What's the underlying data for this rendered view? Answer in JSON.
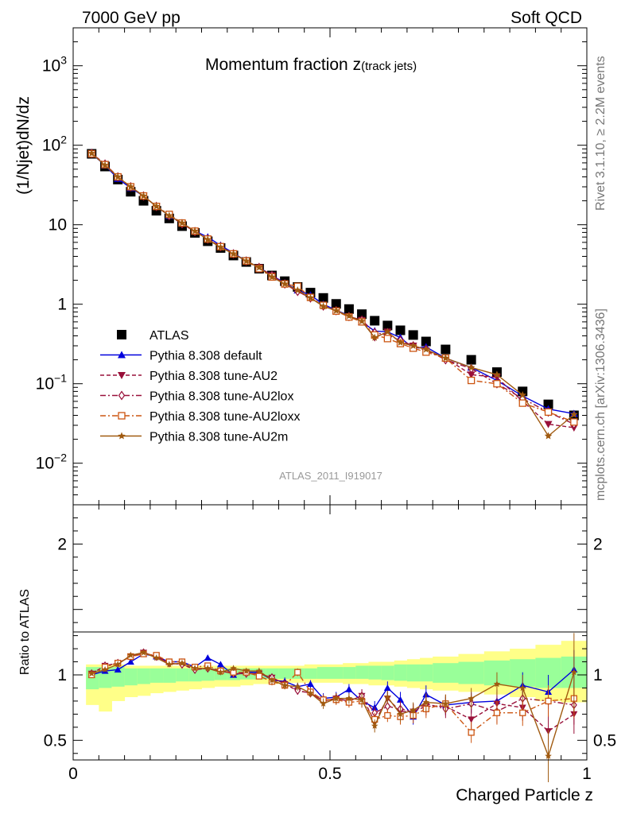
{
  "header": {
    "left": "7000 GeV pp",
    "right": "Soft QCD"
  },
  "side_labels": {
    "rivet": "Rivet 3.1.10, ≥ 2.2M events",
    "mcplots": "mcplots.cern.ch [arXiv:1306.3436]"
  },
  "watermark": "ATLAS_2011_I919017",
  "chart_data": [
    {
      "type": "scatter",
      "title_main": "Momentum fraction ",
      "title_var": "z",
      "title_sub": "(track jets)",
      "ylabel": "(1/Njet)dN/dz",
      "yscale": "log",
      "ylim": [
        0.003,
        3000
      ],
      "xlim": [
        0,
        1
      ],
      "y_tick_labels": [
        {
          "value": 0.01,
          "base": "10",
          "exp": "−2"
        },
        {
          "value": 0.1,
          "base": "10",
          "exp": "−1"
        },
        {
          "value": 1,
          "base": "1",
          "exp": ""
        },
        {
          "value": 10,
          "base": "10",
          "exp": ""
        },
        {
          "value": 100,
          "base": "10",
          "exp": "2"
        },
        {
          "value": 1000,
          "base": "10",
          "exp": "3"
        }
      ],
      "x": [
        0.036,
        0.062,
        0.087,
        0.112,
        0.137,
        0.162,
        0.187,
        0.212,
        0.237,
        0.262,
        0.287,
        0.312,
        0.337,
        0.362,
        0.387,
        0.412,
        0.437,
        0.462,
        0.487,
        0.512,
        0.537,
        0.562,
        0.587,
        0.612,
        0.637,
        0.662,
        0.687,
        0.725,
        0.775,
        0.825,
        0.875,
        0.925,
        0.975
      ],
      "series": [
        {
          "name": "ATLAS",
          "color": "#000000",
          "marker": "square-filled",
          "line": "none",
          "values": [
            78,
            54,
            37,
            26,
            20,
            15,
            12,
            9.6,
            7.9,
            6.2,
            5.1,
            4.1,
            3.4,
            2.8,
            2.3,
            1.95,
            1.65,
            1.4,
            1.2,
            1.01,
            0.87,
            0.75,
            0.62,
            0.54,
            0.47,
            0.41,
            0.34,
            0.27,
            0.2,
            0.14,
            0.08,
            0.055,
            0.04
          ]
        },
        {
          "name": "Pythia 8.308 default",
          "color": "#0000dd",
          "marker": "triangle-up",
          "line": "solid",
          "values": [
            78,
            56,
            38,
            29,
            23,
            17,
            13,
            10.5,
            8.3,
            7.0,
            5.5,
            4.4,
            3.5,
            2.9,
            2.3,
            1.85,
            1.5,
            1.3,
            1.0,
            0.84,
            0.72,
            0.6,
            0.46,
            0.45,
            0.38,
            0.28,
            0.29,
            0.21,
            0.16,
            0.11,
            0.07,
            0.048,
            0.042
          ]
        },
        {
          "name": "Pythia 8.308 tune-AU2",
          "color": "#99103a",
          "marker": "triangle-down",
          "line": "dashed",
          "values": [
            79,
            58,
            40,
            30,
            23,
            17,
            13,
            10.3,
            8.2,
            6.6,
            5.3,
            4.3,
            3.5,
            2.9,
            2.3,
            1.8,
            1.45,
            1.2,
            0.95,
            0.83,
            0.7,
            0.63,
            0.38,
            0.45,
            0.33,
            0.3,
            0.26,
            0.21,
            0.13,
            0.12,
            0.06,
            0.031,
            0.028
          ]
        },
        {
          "name": "Pythia 8.308 tune-AU2lox",
          "color": "#99103a",
          "marker": "diamond-open",
          "line": "dashdot",
          "values": [
            79,
            58,
            40,
            30,
            23,
            17,
            13,
            10.3,
            8.2,
            6.6,
            5.3,
            4.3,
            3.5,
            2.9,
            2.3,
            1.8,
            1.45,
            1.2,
            0.95,
            0.83,
            0.7,
            0.63,
            0.44,
            0.41,
            0.35,
            0.3,
            0.27,
            0.2,
            0.155,
            0.1,
            0.065,
            0.044,
            0.031
          ]
        },
        {
          "name": "Pythia 8.308 tune-AU2loxx",
          "color": "#cc5511",
          "marker": "square-open",
          "line": "dashdot",
          "values": [
            78,
            57,
            40,
            30,
            23,
            17,
            13.5,
            10.5,
            8.3,
            6.6,
            5.3,
            4.3,
            3.5,
            2.8,
            2.2,
            1.8,
            1.68,
            1.22,
            0.97,
            0.82,
            0.69,
            0.6,
            0.41,
            0.37,
            0.32,
            0.28,
            0.25,
            0.21,
            0.11,
            0.1,
            0.057,
            0.044,
            0.033
          ]
        },
        {
          "name": "Pythia 8.308 tune-AU2m",
          "color": "#a05a10",
          "marker": "star",
          "line": "solid",
          "values": [
            79,
            56,
            40,
            30,
            23,
            17,
            13,
            10.5,
            8.3,
            6.5,
            5.2,
            4.3,
            3.5,
            2.9,
            2.2,
            1.8,
            1.5,
            1.2,
            0.94,
            0.83,
            0.71,
            0.61,
            0.38,
            0.45,
            0.33,
            0.3,
            0.27,
            0.21,
            0.16,
            0.13,
            0.072,
            0.022,
            0.041
          ]
        }
      ]
    },
    {
      "type": "scatter",
      "ylabel": "Ratio to ATLAS",
      "xlabel": "Charged Particle z",
      "ylim": [
        0.35,
        2.3
      ],
      "xlim": [
        0,
        1
      ],
      "x_tick_labels": [
        {
          "value": 0,
          "label": "0"
        },
        {
          "value": 0.5,
          "label": "0.5"
        },
        {
          "value": 1,
          "label": "1"
        }
      ],
      "y_tick_labels": [
        {
          "value": 0.5,
          "label": "0.5"
        },
        {
          "value": 1,
          "label": "1"
        },
        {
          "value": 2,
          "label": "2"
        }
      ],
      "bands": {
        "x_edges": [
          0.025,
          0.05,
          0.075,
          0.1,
          0.125,
          0.15,
          0.175,
          0.2,
          0.225,
          0.25,
          0.275,
          0.3,
          0.325,
          0.35,
          0.375,
          0.4,
          0.425,
          0.45,
          0.475,
          0.5,
          0.525,
          0.55,
          0.575,
          0.6,
          0.625,
          0.65,
          0.675,
          0.7,
          0.75,
          0.8,
          0.85,
          0.9,
          0.95,
          1.0
        ],
        "green_color": "#99ff99",
        "yellow_color": "#ffff88",
        "green_lo": [
          0.89,
          0.9,
          0.91,
          0.92,
          0.93,
          0.94,
          0.94,
          0.95,
          0.95,
          0.955,
          0.96,
          0.96,
          0.965,
          0.965,
          0.97,
          0.97,
          0.97,
          0.97,
          0.97,
          0.97,
          0.97,
          0.97,
          0.965,
          0.96,
          0.955,
          0.95,
          0.95,
          0.94,
          0.93,
          0.92,
          0.91,
          0.9,
          0.9
        ],
        "green_hi": [
          1.06,
          1.06,
          1.06,
          1.05,
          1.05,
          1.05,
          1.05,
          1.05,
          1.05,
          1.05,
          1.05,
          1.05,
          1.05,
          1.05,
          1.05,
          1.05,
          1.05,
          1.05,
          1.06,
          1.06,
          1.06,
          1.07,
          1.07,
          1.07,
          1.08,
          1.08,
          1.08,
          1.09,
          1.1,
          1.11,
          1.12,
          1.13,
          1.14
        ],
        "yellow_lo": [
          0.77,
          0.72,
          0.8,
          0.83,
          0.84,
          0.86,
          0.87,
          0.88,
          0.89,
          0.9,
          0.91,
          0.91,
          0.92,
          0.93,
          0.93,
          0.94,
          0.94,
          0.94,
          0.94,
          0.94,
          0.93,
          0.93,
          0.92,
          0.92,
          0.91,
          0.9,
          0.89,
          0.88,
          0.87,
          0.85,
          0.83,
          0.8,
          0.79
        ],
        "yellow_hi": [
          1.08,
          1.08,
          1.08,
          1.07,
          1.07,
          1.07,
          1.07,
          1.07,
          1.07,
          1.07,
          1.07,
          1.07,
          1.07,
          1.07,
          1.07,
          1.07,
          1.07,
          1.08,
          1.08,
          1.08,
          1.09,
          1.09,
          1.1,
          1.1,
          1.11,
          1.12,
          1.13,
          1.14,
          1.16,
          1.18,
          1.2,
          1.23,
          1.26
        ]
      },
      "x": [
        0.036,
        0.062,
        0.087,
        0.112,
        0.137,
        0.162,
        0.187,
        0.212,
        0.237,
        0.262,
        0.287,
        0.312,
        0.337,
        0.362,
        0.387,
        0.412,
        0.437,
        0.462,
        0.487,
        0.512,
        0.537,
        0.562,
        0.587,
        0.612,
        0.637,
        0.662,
        0.687,
        0.725,
        0.775,
        0.825,
        0.875,
        0.925,
        0.975
      ],
      "series": [
        {
          "name": "Pythia 8.308 default",
          "color": "#0000dd",
          "marker": "triangle-up",
          "line": "solid",
          "values": [
            1.0,
            1.03,
            1.04,
            1.1,
            1.16,
            1.14,
            1.1,
            1.1,
            1.06,
            1.13,
            1.08,
            1.0,
            1.02,
            1.02,
            0.96,
            0.95,
            0.91,
            0.93,
            0.82,
            0.83,
            0.89,
            0.8,
            0.75,
            0.9,
            0.81,
            0.68,
            0.85,
            0.77,
            0.79,
            0.8,
            0.92,
            0.87,
            1.04
          ],
          "err": [
            0.01,
            0.01,
            0.01,
            0.01,
            0.01,
            0.01,
            0.01,
            0.01,
            0.02,
            0.02,
            0.02,
            0.02,
            0.02,
            0.02,
            0.03,
            0.03,
            0.03,
            0.03,
            0.04,
            0.04,
            0.04,
            0.05,
            0.05,
            0.05,
            0.06,
            0.06,
            0.07,
            0.07,
            0.08,
            0.09,
            0.1,
            0.13,
            0.15
          ]
        },
        {
          "name": "Pythia 8.308 tune-AU2",
          "color": "#99103a",
          "marker": "triangle-down",
          "line": "dashed",
          "values": [
            1.01,
            1.07,
            1.09,
            1.14,
            1.17,
            1.14,
            1.09,
            1.08,
            1.04,
            1.05,
            1.03,
            1.01,
            1.01,
            1.01,
            0.98,
            0.93,
            0.88,
            0.86,
            0.8,
            0.82,
            0.8,
            0.84,
            0.64,
            0.82,
            0.72,
            0.72,
            0.76,
            0.76,
            0.66,
            0.78,
            0.75,
            0.57,
            0.7
          ],
          "err": [
            0.01,
            0.01,
            0.01,
            0.01,
            0.01,
            0.01,
            0.01,
            0.01,
            0.02,
            0.02,
            0.02,
            0.02,
            0.02,
            0.02,
            0.03,
            0.03,
            0.03,
            0.03,
            0.04,
            0.04,
            0.04,
            0.05,
            0.05,
            0.05,
            0.06,
            0.06,
            0.07,
            0.07,
            0.08,
            0.09,
            0.1,
            0.12,
            0.15
          ]
        },
        {
          "name": "Pythia 8.308 tune-AU2lox",
          "color": "#99103a",
          "marker": "diamond-open",
          "line": "dashdot",
          "values": [
            1.01,
            1.07,
            1.09,
            1.14,
            1.17,
            1.14,
            1.09,
            1.08,
            1.04,
            1.05,
            1.03,
            1.01,
            1.01,
            1.01,
            0.98,
            0.93,
            0.88,
            0.86,
            0.8,
            0.82,
            0.8,
            0.84,
            0.71,
            0.76,
            0.74,
            0.72,
            0.78,
            0.74,
            0.78,
            0.72,
            0.82,
            0.8,
            0.77
          ],
          "err": [
            0.01,
            0.01,
            0.01,
            0.01,
            0.01,
            0.01,
            0.01,
            0.01,
            0.02,
            0.02,
            0.02,
            0.02,
            0.02,
            0.02,
            0.03,
            0.03,
            0.03,
            0.03,
            0.04,
            0.04,
            0.04,
            0.05,
            0.05,
            0.05,
            0.06,
            0.06,
            0.07,
            0.07,
            0.08,
            0.09,
            0.1,
            0.12,
            0.15
          ]
        },
        {
          "name": "Pythia 8.308 tune-AU2loxx",
          "color": "#cc5511",
          "marker": "square-open",
          "line": "dashdot",
          "values": [
            1.0,
            1.06,
            1.09,
            1.14,
            1.16,
            1.15,
            1.1,
            1.1,
            1.06,
            1.07,
            1.03,
            1.02,
            1.02,
            0.99,
            0.95,
            0.92,
            1.02,
            0.87,
            0.81,
            0.81,
            0.79,
            0.8,
            0.66,
            0.69,
            0.68,
            0.69,
            0.74,
            0.78,
            0.56,
            0.71,
            0.71,
            0.8,
            0.82
          ],
          "err": [
            0.01,
            0.01,
            0.01,
            0.01,
            0.01,
            0.01,
            0.01,
            0.01,
            0.02,
            0.02,
            0.02,
            0.02,
            0.02,
            0.02,
            0.03,
            0.03,
            0.03,
            0.03,
            0.04,
            0.04,
            0.04,
            0.05,
            0.05,
            0.05,
            0.06,
            0.06,
            0.07,
            0.07,
            0.08,
            0.09,
            0.1,
            0.12,
            0.15
          ]
        },
        {
          "name": "Pythia 8.308 tune-AU2m",
          "color": "#a05a10",
          "marker": "star",
          "line": "solid",
          "values": [
            1.01,
            1.04,
            1.08,
            1.15,
            1.17,
            1.13,
            1.08,
            1.09,
            1.05,
            1.05,
            1.02,
            1.05,
            1.03,
            1.03,
            0.96,
            0.92,
            0.91,
            0.86,
            0.78,
            0.82,
            0.82,
            0.81,
            0.61,
            0.83,
            0.7,
            0.73,
            0.79,
            0.78,
            0.82,
            0.93,
            0.9,
            0.38,
            1.02
          ],
          "err": [
            0.01,
            0.01,
            0.01,
            0.01,
            0.01,
            0.01,
            0.01,
            0.01,
            0.02,
            0.02,
            0.02,
            0.02,
            0.02,
            0.02,
            0.03,
            0.03,
            0.03,
            0.03,
            0.04,
            0.04,
            0.04,
            0.05,
            0.05,
            0.05,
            0.06,
            0.06,
            0.07,
            0.07,
            0.08,
            0.09,
            0.1,
            0.2,
            0.3
          ]
        }
      ]
    }
  ]
}
